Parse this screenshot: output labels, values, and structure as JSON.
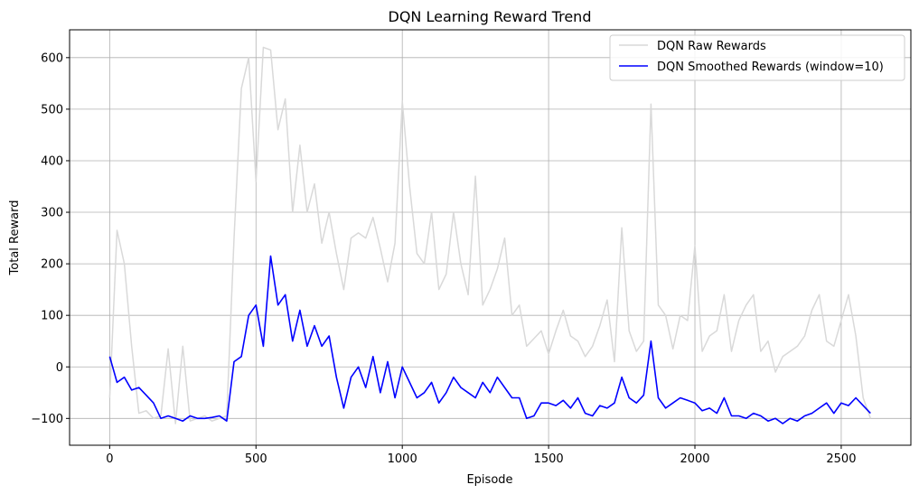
{
  "chart_data": {
    "type": "line",
    "title": "DQN Learning Reward Trend",
    "xlabel": "Episode",
    "ylabel": "Total Reward",
    "xlim": [
      -137,
      2738
    ],
    "ylim": [
      -152,
      654
    ],
    "grid": true,
    "legend_position": "top-right",
    "x_ticks": [
      0,
      500,
      1000,
      1500,
      2000,
      2500
    ],
    "x_tick_labels": [
      "0",
      "500",
      "1000",
      "1500",
      "2000",
      "2500"
    ],
    "y_ticks": [
      -100,
      0,
      100,
      200,
      300,
      400,
      500,
      600
    ],
    "y_tick_labels": [
      "−100",
      "0",
      "100",
      "200",
      "300",
      "400",
      "500",
      "600"
    ],
    "series": [
      {
        "name": "DQN Raw Rewards",
        "color": "#d9d9d9",
        "x": [
          0,
          25,
          50,
          75,
          100,
          125,
          150,
          175,
          200,
          225,
          250,
          275,
          300,
          325,
          350,
          375,
          400,
          425,
          450,
          475,
          500,
          525,
          550,
          575,
          600,
          625,
          650,
          675,
          700,
          725,
          750,
          775,
          800,
          825,
          850,
          875,
          900,
          925,
          950,
          975,
          1000,
          1025,
          1050,
          1075,
          1100,
          1125,
          1150,
          1175,
          1200,
          1225,
          1250,
          1275,
          1300,
          1325,
          1350,
          1375,
          1400,
          1425,
          1450,
          1475,
          1500,
          1525,
          1550,
          1575,
          1600,
          1625,
          1650,
          1675,
          1700,
          1725,
          1750,
          1775,
          1800,
          1825,
          1850,
          1875,
          1900,
          1925,
          1950,
          1975,
          2000,
          2025,
          2050,
          2075,
          2100,
          2125,
          2150,
          2175,
          2200,
          2225,
          2250,
          2275,
          2300,
          2325,
          2350,
          2375,
          2400,
          2425,
          2450,
          2475,
          2500,
          2525,
          2550,
          2575,
          2600
        ],
        "y": [
          -60,
          265,
          200,
          40,
          -90,
          -85,
          -100,
          -95,
          35,
          -110,
          40,
          -105,
          -100,
          -95,
          -105,
          -100,
          -95,
          250,
          540,
          600,
          360,
          620,
          615,
          460,
          520,
          300,
          430,
          300,
          355,
          240,
          300,
          220,
          150,
          250,
          260,
          250,
          290,
          230,
          165,
          240,
          515,
          350,
          220,
          200,
          300,
          150,
          180,
          300,
          200,
          140,
          370,
          120,
          150,
          190,
          250,
          100,
          120,
          40,
          55,
          70,
          25,
          70,
          110,
          60,
          50,
          20,
          40,
          80,
          130,
          10,
          270,
          70,
          30,
          50,
          510,
          120,
          100,
          35,
          100,
          90,
          235,
          30,
          60,
          70,
          140,
          30,
          90,
          120,
          140,
          30,
          50,
          -10,
          20,
          30,
          40,
          60,
          110,
          140,
          50,
          40,
          90,
          140,
          60,
          -60,
          -100
        ]
      },
      {
        "name": "DQN Smoothed Rewards (window=10)",
        "color": "#0000ff",
        "x": [
          0,
          25,
          50,
          75,
          100,
          125,
          150,
          175,
          200,
          225,
          250,
          275,
          300,
          325,
          350,
          375,
          400,
          425,
          450,
          475,
          500,
          525,
          550,
          575,
          600,
          625,
          650,
          675,
          700,
          725,
          750,
          775,
          800,
          825,
          850,
          875,
          900,
          925,
          950,
          975,
          1000,
          1025,
          1050,
          1075,
          1100,
          1125,
          1150,
          1175,
          1200,
          1225,
          1250,
          1275,
          1300,
          1325,
          1350,
          1375,
          1400,
          1425,
          1450,
          1475,
          1500,
          1525,
          1550,
          1575,
          1600,
          1625,
          1650,
          1675,
          1700,
          1725,
          1750,
          1775,
          1800,
          1825,
          1850,
          1875,
          1900,
          1925,
          1950,
          1975,
          2000,
          2025,
          2050,
          2075,
          2100,
          2125,
          2150,
          2175,
          2200,
          2225,
          2250,
          2275,
          2300,
          2325,
          2350,
          2375,
          2400,
          2425,
          2450,
          2475,
          2500,
          2525,
          2550,
          2575,
          2600
        ],
        "y": [
          20,
          -30,
          -20,
          -45,
          -40,
          -55,
          -70,
          -100,
          -95,
          -100,
          -105,
          -95,
          -100,
          -100,
          -98,
          -95,
          -105,
          10,
          20,
          100,
          120,
          40,
          215,
          120,
          140,
          50,
          110,
          40,
          80,
          40,
          60,
          -20,
          -80,
          -20,
          0,
          -40,
          20,
          -50,
          10,
          -60,
          0,
          -30,
          -60,
          -50,
          -30,
          -70,
          -50,
          -20,
          -40,
          -50,
          -60,
          -30,
          -50,
          -20,
          -40,
          -60,
          -60,
          -100,
          -95,
          -70,
          -70,
          -75,
          -65,
          -80,
          -60,
          -90,
          -95,
          -75,
          -80,
          -70,
          -20,
          -60,
          -70,
          -55,
          50,
          -60,
          -80,
          -70,
          -60,
          -65,
          -70,
          -85,
          -80,
          -90,
          -60,
          -95,
          -95,
          -100,
          -90,
          -95,
          -105,
          -100,
          -110,
          -100,
          -105,
          -95,
          -90,
          -80,
          -70,
          -90,
          -70,
          -75,
          -60,
          -75,
          -90
        ]
      }
    ]
  }
}
